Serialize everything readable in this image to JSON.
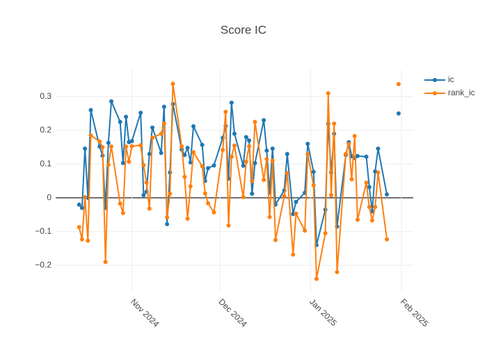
{
  "chart_data": {
    "type": "line",
    "title": "Score IC",
    "x": [
      "2024-10-14",
      "2024-10-15",
      "2024-10-16",
      "2024-10-17",
      "2024-10-18",
      "2024-10-21",
      "2024-10-22",
      "2024-10-23",
      "2024-10-24",
      "2024-10-25",
      "2024-10-28",
      "2024-10-29",
      "2024-10-30",
      "2024-10-31",
      "2024-11-01",
      "2024-11-04",
      "2024-11-05",
      "2024-11-06",
      "2024-11-07",
      "2024-11-08",
      "2024-11-11",
      "2024-11-12",
      "2024-11-13",
      "2024-11-14",
      "2024-11-15",
      "2024-11-18",
      "2024-11-19",
      "2024-11-20",
      "2024-11-21",
      "2024-11-22",
      "2024-11-25",
      "2024-11-26",
      "2024-11-27",
      "2024-11-29",
      "2024-12-02",
      "2024-12-03",
      "2024-12-04",
      "2024-12-05",
      "2024-12-06",
      "2024-12-09",
      "2024-12-10",
      "2024-12-11",
      "2024-12-12",
      "2024-12-13",
      "2024-12-16",
      "2024-12-17",
      "2024-12-18",
      "2024-12-19",
      "2024-12-20",
      "2024-12-23",
      "2024-12-24",
      "2024-12-26",
      "2024-12-27",
      "2024-12-30",
      "2024-12-31",
      "2025-01-02",
      "2025-01-03",
      "2025-01-06",
      "2025-01-07",
      "2025-01-08",
      "2025-01-09",
      "2025-01-10",
      "2025-01-13",
      "2025-01-14",
      "2025-01-15",
      "2025-01-16",
      "2025-01-17",
      "2025-01-20",
      "2025-01-21",
      "2025-01-22",
      "2025-01-23",
      "2025-01-24",
      "2025-01-27",
      "2025-01-28",
      "2025-01-31"
    ],
    "series": [
      {
        "name": "ic",
        "color": "#1f77b4",
        "values": [
          -0.02,
          -0.03,
          0.146,
          0.0,
          0.26,
          0.152,
          0.125,
          -0.03,
          0.163,
          0.286,
          0.225,
          0.103,
          0.24,
          0.165,
          0.168,
          0.252,
          0.008,
          0.018,
          0.13,
          0.208,
          0.133,
          0.27,
          -0.078,
          0.075,
          0.278,
          0.143,
          0.127,
          0.148,
          0.105,
          0.212,
          0.157,
          0.05,
          0.088,
          0.096,
          0.178,
          0.213,
          0.057,
          0.282,
          0.19,
          0.095,
          0.18,
          0.17,
          0.012,
          0.103,
          0.23,
          0.14,
          0.016,
          0.146,
          -0.02,
          0.022,
          0.13,
          -0.048,
          -0.012,
          0.015,
          0.16,
          0.077,
          -0.14,
          -0.035,
          0.22,
          0.075,
          0.19,
          -0.085,
          0.127,
          0.165,
          0.123,
          0.118,
          0.124,
          0.122,
          0.032,
          -0.04,
          0.078,
          0.146,
          0.01,
          null,
          0.25
        ]
      },
      {
        "name": "rank_ic",
        "color": "#ff7f0e",
        "values": [
          -0.087,
          -0.123,
          0.002,
          -0.127,
          0.185,
          0.167,
          0.15,
          -0.19,
          0.098,
          0.152,
          -0.017,
          -0.045,
          0.152,
          0.107,
          0.153,
          0.156,
          0.097,
          0.045,
          -0.032,
          0.178,
          0.19,
          0.22,
          -0.058,
          0.012,
          0.338,
          0.152,
          0.062,
          -0.062,
          0.034,
          0.135,
          0.094,
          0.013,
          -0.016,
          -0.043,
          0.142,
          0.255,
          -0.082,
          0.122,
          0.155,
          0.002,
          0.107,
          0.153,
          0.05,
          0.225,
          0.053,
          0.115,
          -0.057,
          0.11,
          -0.125,
          0.005,
          0.073,
          -0.168,
          -0.047,
          -0.097,
          0.13,
          0.037,
          -0.24,
          -0.105,
          0.31,
          0.008,
          0.22,
          -0.22,
          0.13,
          0.16,
          0.055,
          0.183,
          -0.065,
          0.045,
          -0.027,
          -0.067,
          -0.027,
          0.075,
          -0.123,
          null,
          0.337
        ]
      }
    ],
    "xlim": [
      "2024-10-06",
      "2025-02-05"
    ],
    "xticks": [
      {
        "value": "2024-11-01",
        "label": "Nov 2024"
      },
      {
        "value": "2024-12-01",
        "label": "Dec 2024"
      },
      {
        "value": "2025-01-01",
        "label": "Jan 2025"
      },
      {
        "value": "2025-02-01",
        "label": "Feb 2025"
      }
    ],
    "ylim": [
      -0.28,
      0.38
    ],
    "yticks": [
      {
        "value": -0.2,
        "label": "−0.2"
      },
      {
        "value": -0.1,
        "label": "−0.1"
      },
      0,
      0.1,
      0.2,
      0.3
    ],
    "grid": true,
    "legend": "top-right"
  }
}
